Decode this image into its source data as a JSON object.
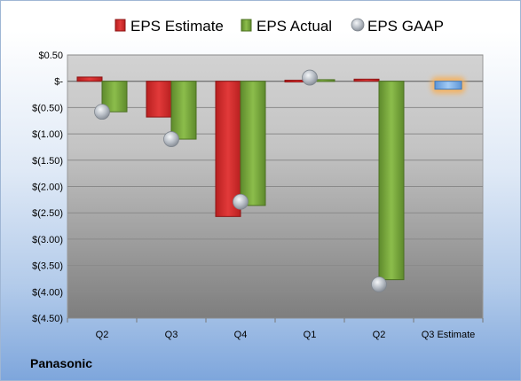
{
  "company": "Panasonic",
  "chart_data": {
    "type": "bar",
    "categories": [
      "Q2",
      "Q3",
      "Q4",
      "Q1",
      "Q2",
      "Q3 Estimate"
    ],
    "series": [
      {
        "name": "EPS Estimate",
        "type": "bar",
        "color": "#d42a2a",
        "values": [
          0.08,
          -0.68,
          -2.57,
          0.02,
          0.04,
          null
        ]
      },
      {
        "name": "EPS Actual",
        "type": "bar",
        "color": "#76a33b",
        "values": [
          -0.58,
          -1.1,
          -2.36,
          0.03,
          -3.77,
          null
        ]
      },
      {
        "name": "EPS GAAP",
        "type": "scatter",
        "color": "#b8bec6",
        "values": [
          -0.58,
          -1.1,
          -2.29,
          0.07,
          -3.86,
          null
        ]
      },
      {
        "name": "",
        "type": "bar",
        "color": "#7fb2ec",
        "highlight": "#f6b15c",
        "values": [
          null,
          null,
          null,
          null,
          null,
          -0.15
        ]
      }
    ],
    "y_ticks": [
      "$0.50",
      "$-",
      "$(0.50)",
      "$(1.00)",
      "$(1.50)",
      "$(2.00)",
      "$(2.50)",
      "$(3.00)",
      "$(3.50)",
      "$(4.00)",
      "$(4.50)"
    ],
    "ylim": [
      -4.5,
      0.5
    ],
    "grid": true,
    "legend_position": "top"
  }
}
